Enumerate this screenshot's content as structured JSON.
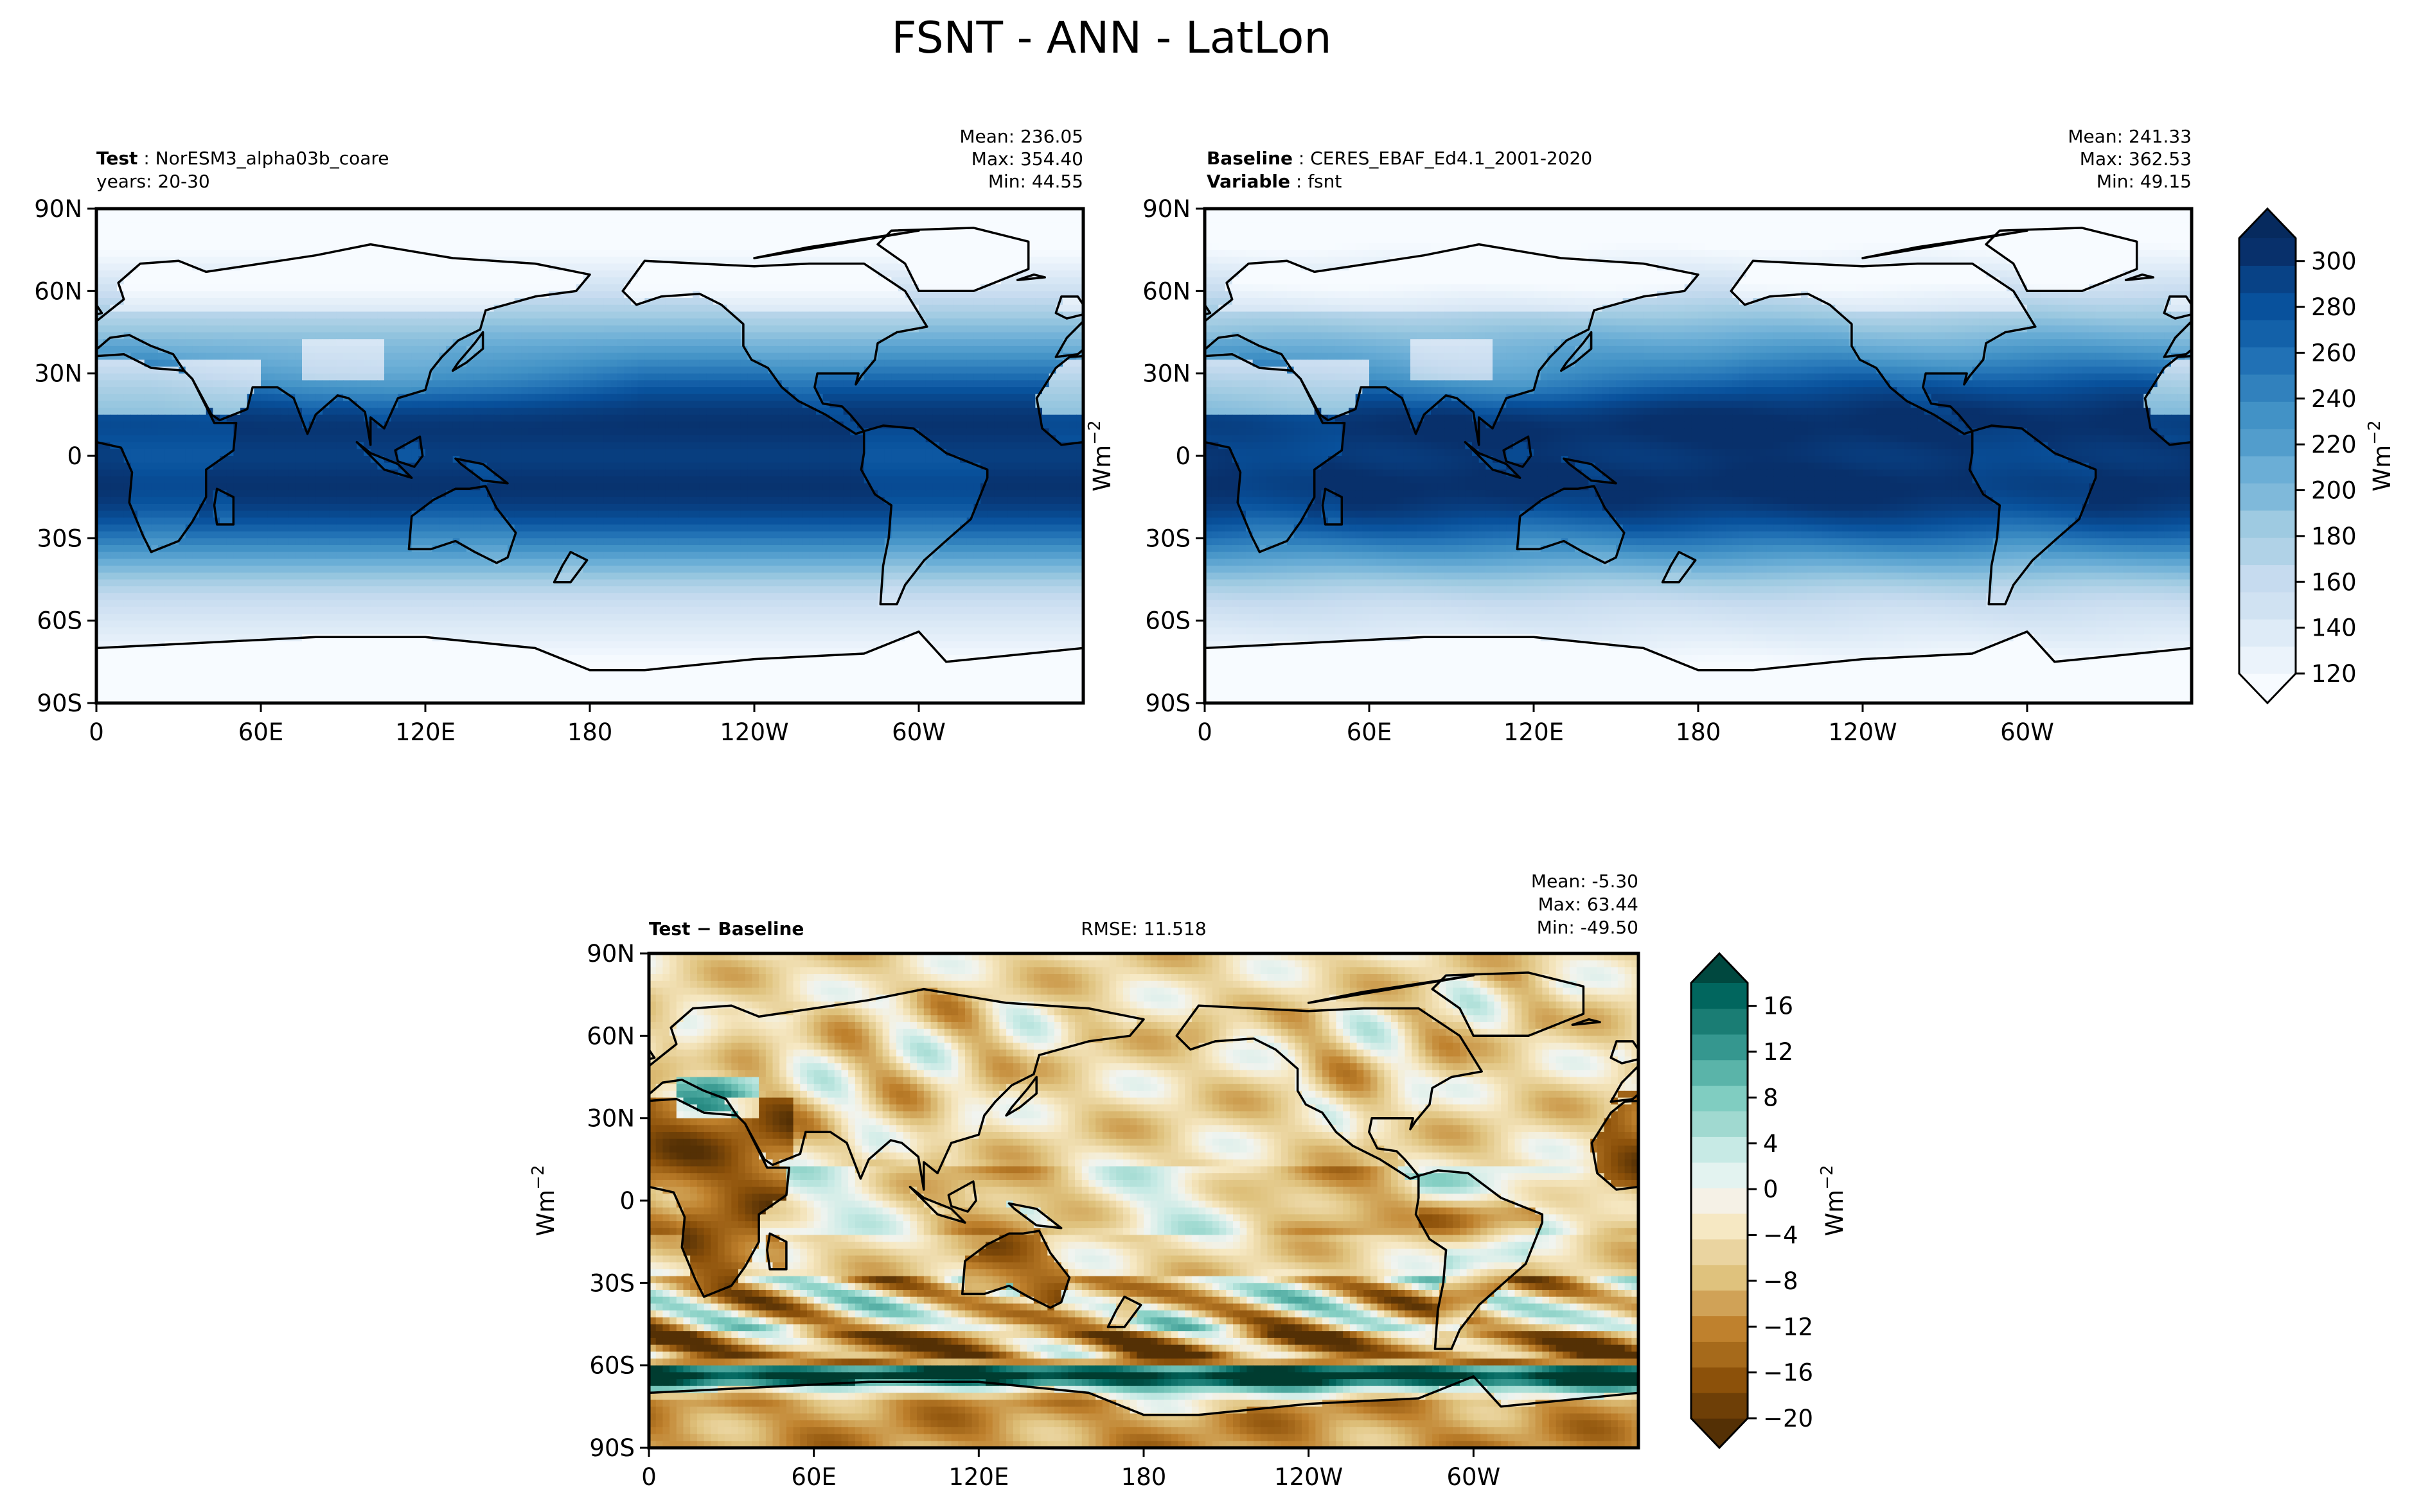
{
  "chart_data": [
    {
      "type": "heatmap",
      "panel": "test",
      "title": "FSNT - ANN - LatLon",
      "label_bold": "Test",
      "label_text": "NorESM3_alpha03b_coare",
      "subtitle": "years: 20-30",
      "stats": [
        "Mean: 236.05",
        "Max: 354.40",
        "Min: 44.55"
      ],
      "xticks": [
        "0",
        "60E",
        "120E",
        "180",
        "120W",
        "60W"
      ],
      "yticks": [
        "90N",
        "60N",
        "30N",
        "0",
        "30S",
        "60S",
        "90S"
      ],
      "xlim": [
        0,
        360
      ],
      "ylim": [
        -90,
        90
      ],
      "colormap": "Blues",
      "field": "model",
      "levels": [
        120,
        130,
        140,
        150,
        160,
        170,
        180,
        190,
        200,
        210,
        220,
        230,
        240,
        250,
        260,
        270,
        280,
        290,
        300,
        310
      ]
    },
    {
      "type": "heatmap",
      "panel": "baseline",
      "label_bold": "Baseline",
      "label_text": "CERES_EBAF_Ed4.1_2001-2020",
      "label2_bold": "Variable",
      "label2_text": "fsnt",
      "stats": [
        "Mean: 241.33",
        "Max: 362.53",
        "Min: 49.15"
      ],
      "xticks": [
        "0",
        "60E",
        "120E",
        "180",
        "120W",
        "60W"
      ],
      "yticks": [
        "90N",
        "60N",
        "30N",
        "0",
        "30S",
        "60S",
        "90S"
      ],
      "xlim": [
        0,
        360
      ],
      "ylim": [
        -90,
        90
      ],
      "ylabel": "Wm",
      "ylabel_sup": "−2",
      "colormap": "Blues",
      "field": "obs",
      "colorbar": {
        "ticks": [
          "120",
          "140",
          "160",
          "180",
          "200",
          "220",
          "240",
          "260",
          "280",
          "300"
        ],
        "tick_values": [
          120,
          140,
          160,
          180,
          200,
          220,
          240,
          260,
          280,
          300
        ],
        "range": [
          120,
          310
        ],
        "label": "Wm",
        "label_sup": "−2",
        "colors": [
          "#f7fbff",
          "#ebf3fb",
          "#deebf7",
          "#d0e2f2",
          "#c6dbef",
          "#b0d2e7",
          "#9ecae1",
          "#7fb9da",
          "#6baed6",
          "#529dcc",
          "#4292c6",
          "#3181bd",
          "#2171b5",
          "#1361a9",
          "#08519c",
          "#084286",
          "#08306b",
          "#062a5e"
        ]
      }
    },
    {
      "type": "heatmap",
      "panel": "difference",
      "label_bold": "Test − Baseline",
      "rmse": "RMSE: 11.518",
      "stats": [
        "Mean: -5.30",
        "Max: 63.44",
        "Min: -49.50"
      ],
      "xticks": [
        "0",
        "60E",
        "120E",
        "180",
        "120W",
        "60W"
      ],
      "yticks": [
        "90N",
        "60N",
        "30N",
        "0",
        "30S",
        "60S",
        "90S"
      ],
      "xlim": [
        0,
        360
      ],
      "ylim": [
        -90,
        90
      ],
      "ylabel": "Wm",
      "ylabel_sup": "−2",
      "colormap": "BrBG",
      "field": "diff",
      "colorbar": {
        "ticks": [
          "−20",
          "−16",
          "−12",
          "−8",
          "−4",
          "0",
          "4",
          "8",
          "12",
          "16"
        ],
        "tick_values": [
          -20,
          -16,
          -12,
          -8,
          -4,
          0,
          4,
          8,
          12,
          16
        ],
        "range": [
          -20,
          18
        ],
        "label": "Wm",
        "label_sup": "−2",
        "colors": [
          "#543005",
          "#6e3f07",
          "#8c510a",
          "#a66a1b",
          "#bf812d",
          "#d0a257",
          "#dfc27d",
          "#ead4a0",
          "#f6e8c3",
          "#f5f1e6",
          "#e3f3f0",
          "#c7eae5",
          "#a0d9d0",
          "#80cdc1",
          "#5ab4a9",
          "#35978f",
          "#1a7d74",
          "#01665e",
          "#00483f"
        ]
      }
    }
  ]
}
